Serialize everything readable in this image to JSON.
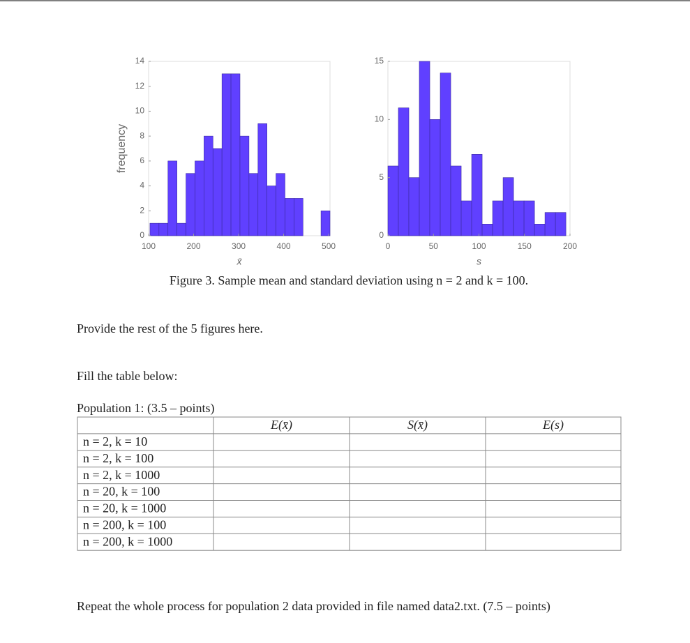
{
  "chart_data": [
    {
      "type": "histogram",
      "xlabel": "x̄",
      "ylabel": "frequency",
      "bins": [
        103,
        123,
        143,
        163,
        183,
        203,
        223,
        243,
        263,
        283,
        303,
        323,
        343,
        363,
        383,
        403,
        423,
        443,
        463,
        483,
        503
      ],
      "values": [
        1,
        1,
        6,
        1,
        5,
        6,
        8,
        7,
        13,
        13,
        8,
        5,
        9,
        4,
        5,
        3,
        3,
        0,
        0,
        2
      ],
      "color": "#6040ff",
      "xlim": [
        100,
        503
      ],
      "ylim": [
        0,
        14
      ],
      "xticks": [
        100,
        200,
        300,
        400,
        500
      ],
      "yticks": [
        0,
        2,
        4,
        6,
        8,
        10,
        12,
        14
      ]
    },
    {
      "type": "histogram",
      "xlabel": "s",
      "bins": [
        0,
        11.5,
        23,
        34.5,
        46,
        57.5,
        69,
        80.5,
        92,
        103.5,
        115,
        126.5,
        138,
        149.5,
        161,
        172.5,
        184,
        195.5
      ],
      "values": [
        6,
        11,
        5,
        15,
        10,
        14,
        6,
        3,
        7,
        1,
        3,
        5,
        3,
        3,
        1,
        2,
        2
      ],
      "color": "#6040ff",
      "xlim": [
        0,
        200
      ],
      "ylim": [
        0,
        15
      ],
      "xticks": [
        0,
        50,
        100,
        150,
        200
      ],
      "yticks": [
        0,
        5,
        10,
        15
      ]
    }
  ],
  "caption": "Figure 3. Sample mean and standard deviation using n = 2 and k = 100.",
  "paragraphs": [
    "Provide the rest of the 5 figures here.",
    "Fill the table below:"
  ],
  "table": {
    "title": "Population 1: (3.5 – points)",
    "header": [
      "E(x̄)",
      "S(x̄)",
      "E(s)"
    ],
    "rows": [
      "n = 2,  k = 10",
      "n = 2,  k = 100",
      "n = 2,  k = 1000",
      "n = 20,  k = 100",
      "n = 20,  k = 1000",
      "n = 200,  k = 100",
      "n = 200,  k = 1000"
    ]
  },
  "footer": "Repeat the whole process for population 2 data provided in file named data2.txt.  (7.5 – points)"
}
